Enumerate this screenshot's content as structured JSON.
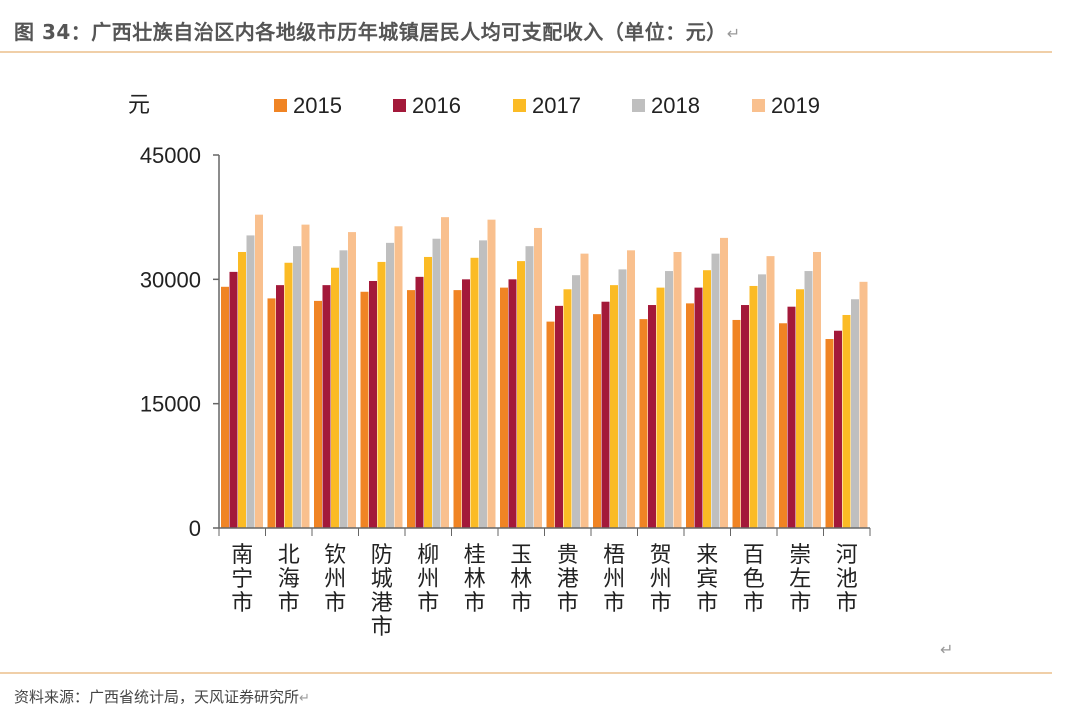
{
  "title": "图 34：广西壮族自治区内各地级市历年城镇居民人均可支配收入（单位：元）",
  "return_mark": "↵",
  "source": "资料来源：广西省统计局，天风证券研究所",
  "chart_data": {
    "type": "bar",
    "title": "",
    "ylabel": "元",
    "xlabel": "",
    "ylim": [
      0,
      45000
    ],
    "yticks": [
      0,
      15000,
      30000,
      45000
    ],
    "ytick_labels": [
      "0",
      "15000",
      "30000",
      "45000"
    ],
    "legend_position": "top",
    "grid": false,
    "categories": [
      "南宁市",
      "北海市",
      "钦州市",
      "防城港市",
      "柳州市",
      "桂林市",
      "玉林市",
      "贵港市",
      "梧州市",
      "贺州市",
      "来宾市",
      "百色市",
      "崇左市",
      "河池市"
    ],
    "series": [
      {
        "name": "2015",
        "color": "#f08424",
        "values": [
          29100,
          27700,
          27400,
          28500,
          28700,
          28700,
          29000,
          24900,
          25800,
          25200,
          27100,
          25100,
          24700,
          22800
        ]
      },
      {
        "name": "2016",
        "color": "#a3193a",
        "values": [
          30900,
          29300,
          29300,
          29800,
          30300,
          30000,
          30000,
          26800,
          27300,
          26900,
          29000,
          26900,
          26700,
          23800
        ]
      },
      {
        "name": "2017",
        "color": "#fbbb25",
        "values": [
          33300,
          32000,
          31400,
          32100,
          32700,
          32600,
          32200,
          28800,
          29300,
          29000,
          31100,
          29200,
          28800,
          25700
        ]
      },
      {
        "name": "2018",
        "color": "#bfbfbf",
        "values": [
          35300,
          34000,
          33500,
          34400,
          34900,
          34700,
          34000,
          30500,
          31200,
          31000,
          33100,
          30600,
          31000,
          27600
        ]
      },
      {
        "name": "2019",
        "color": "#f9c08e",
        "values": [
          37800,
          36600,
          35700,
          36400,
          37500,
          37200,
          36200,
          33100,
          33500,
          33300,
          35000,
          32800,
          33300,
          29700
        ]
      }
    ]
  }
}
